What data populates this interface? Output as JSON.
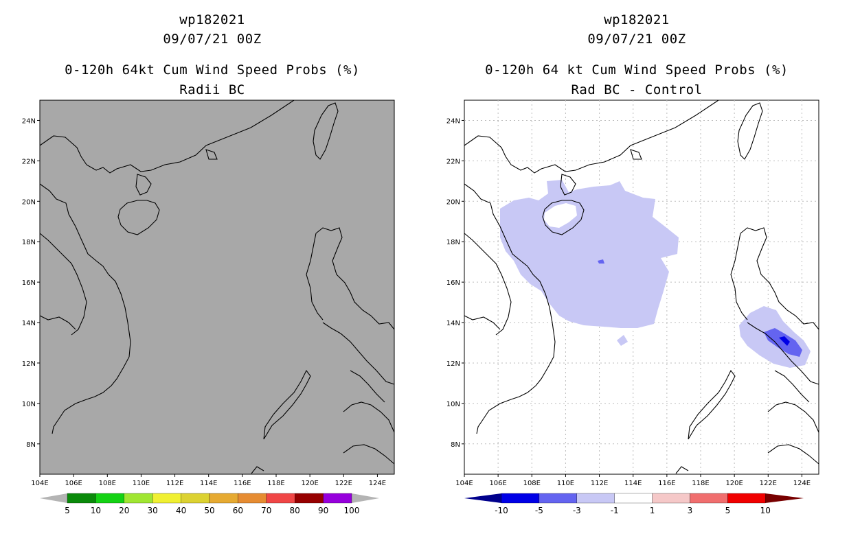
{
  "left": {
    "title_line1": "wp182021",
    "title_line2": "09/07/21 00Z",
    "title_line3": "0-120h 64kt Cum Wind Speed Probs (%)",
    "title_line4": "Radii BC",
    "map_fill": "#a8a8a8",
    "colorbar": {
      "labels": [
        "5",
        "10",
        "20",
        "30",
        "40",
        "50",
        "60",
        "70",
        "80",
        "90",
        "100"
      ],
      "colors": [
        "#0a8a0a",
        "#14d214",
        "#a0e632",
        "#f0f032",
        "#dcd232",
        "#e6aa32",
        "#e68c32",
        "#f04646",
        "#960000",
        "#9600dc"
      ],
      "end_color": "#b4b4b4"
    }
  },
  "right": {
    "title_line1": "wp182021",
    "title_line2": "09/07/21 00Z",
    "title_line3": "0-120h 64 kt Cum Wind Speed Probs (%)",
    "title_line4": "Rad BC - Control",
    "map_fill": "#ffffff",
    "colorbar": {
      "labels": [
        "-10",
        "-5",
        "-3",
        "-1",
        "1",
        "3",
        "5",
        "10"
      ],
      "colors": [
        "#0000e6",
        "#6464f0",
        "#c8c8f5",
        "#ffffff",
        "#f5c8c8",
        "#f06e6e",
        "#f00000"
      ],
      "left_end_color": "#00008c",
      "right_end_color": "#780000"
    }
  },
  "axes": {
    "x_labels": [
      "104E",
      "106E",
      "108E",
      "110E",
      "112E",
      "114E",
      "116E",
      "118E",
      "120E",
      "122E",
      "124E"
    ],
    "y_labels": [
      "24N",
      "22N",
      "20N",
      "18N",
      "16N",
      "14N",
      "12N",
      "10N",
      "8N"
    ]
  }
}
